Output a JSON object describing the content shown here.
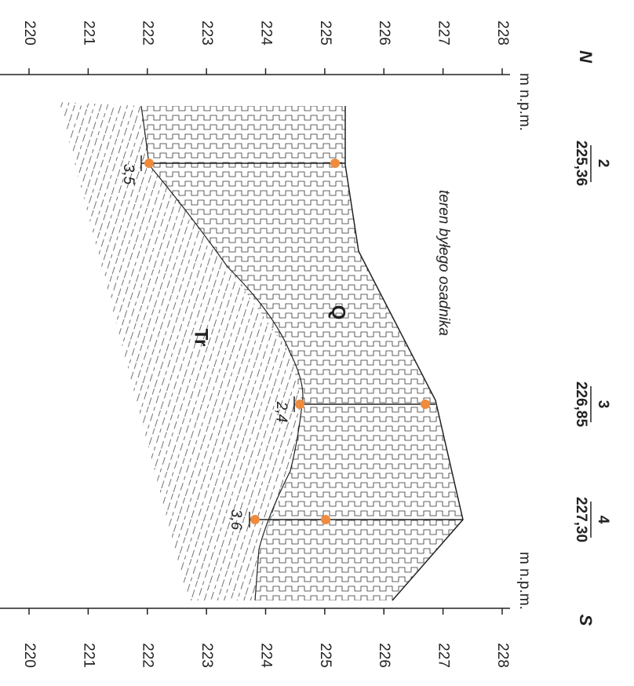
{
  "left_axis": {
    "direction": "N",
    "unit": "m n.p.m.",
    "ticks": [
      220,
      221,
      222,
      223,
      224,
      225,
      226,
      227,
      228
    ]
  },
  "right_axis": {
    "direction": "S",
    "unit": "m n.p.m.",
    "ticks": [
      220,
      221,
      222,
      223,
      224,
      225,
      226,
      227,
      228
    ]
  },
  "boreholes": [
    {
      "number": "2",
      "elevation": "225,36",
      "depth": "3,5"
    },
    {
      "number": "3",
      "elevation": "226,85",
      "depth": "2,4"
    },
    {
      "number": "4",
      "elevation": "227,30",
      "depth": "3,6"
    }
  ],
  "annotation": "teren byłego osadnika",
  "layers": {
    "upper": "Q",
    "lower": "Tr"
  }
}
